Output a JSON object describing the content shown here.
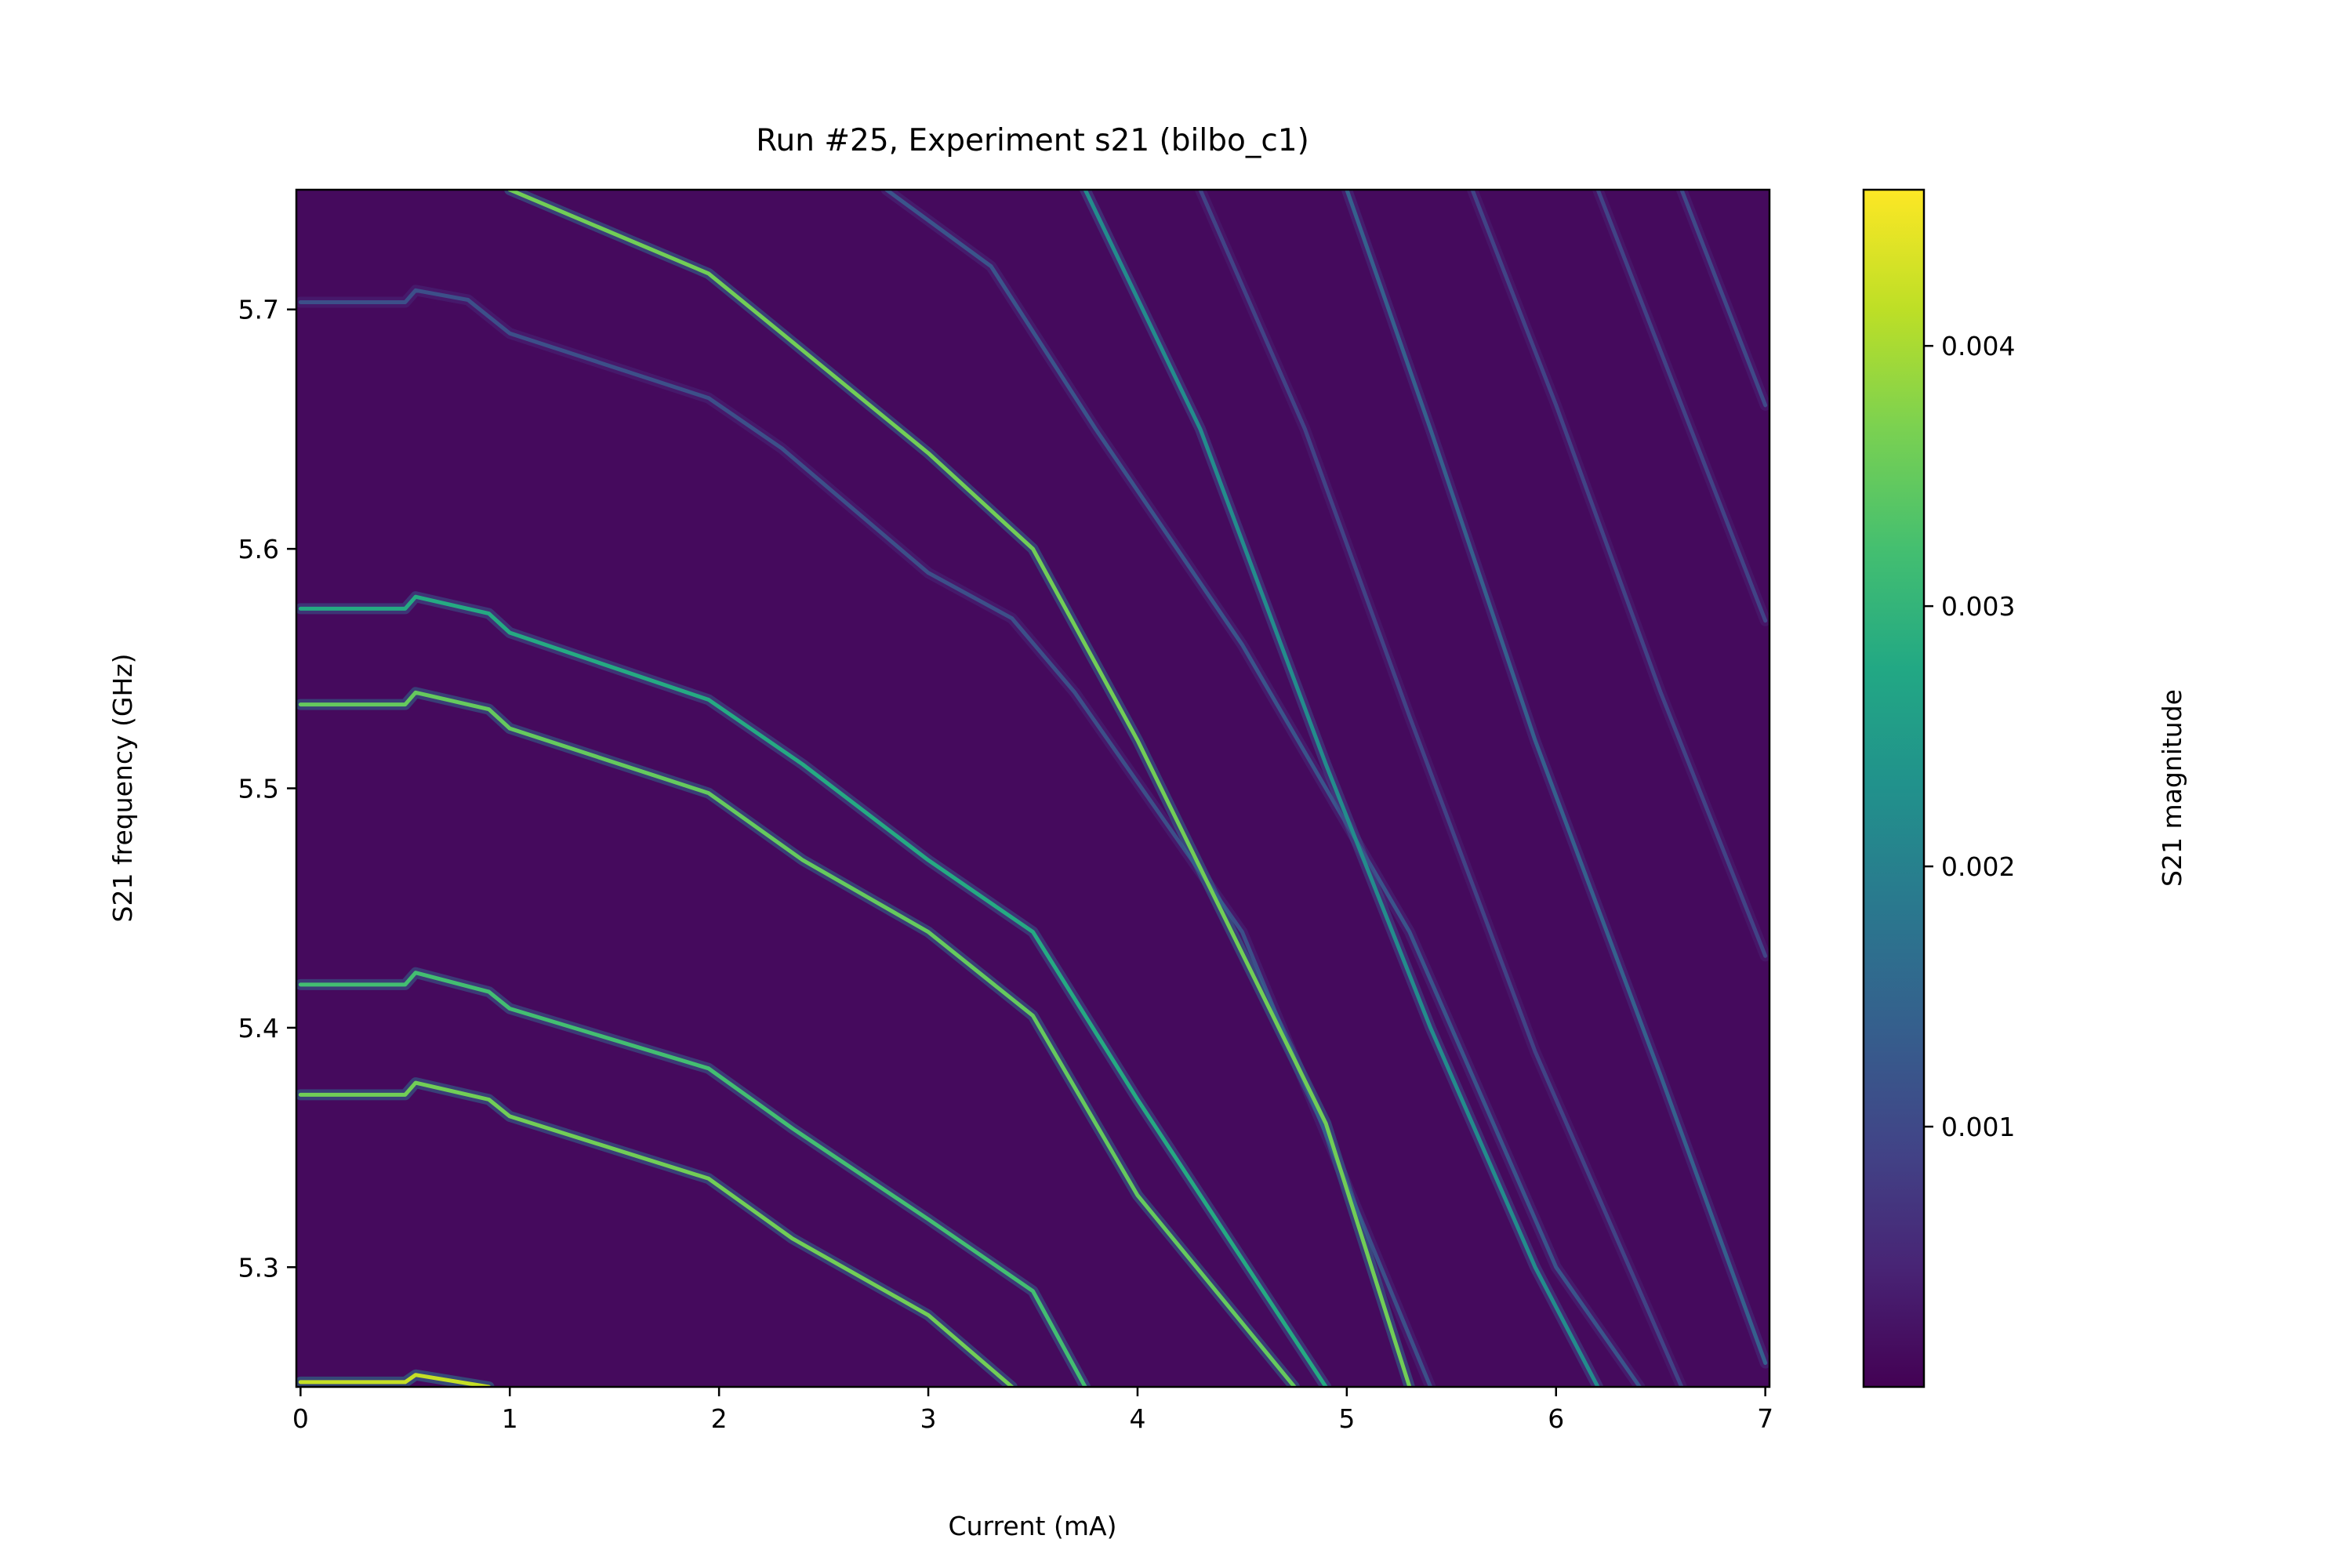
{
  "chart_data": {
    "type": "heatmap",
    "title": "Run #25, Experiment s21 (bilbo_c1)",
    "xlabel": "Current (mA)",
    "ylabel": "S21 frequency (GHz)",
    "colorbar_label": "S21 magnitude",
    "colormap": "viridis",
    "xlim": [
      -0.02,
      7.02
    ],
    "ylim": [
      5.25,
      5.75
    ],
    "clim": [
      0.0,
      0.0046
    ],
    "background_level": 0.00012,
    "x_ticks": [
      0,
      1,
      2,
      3,
      4,
      5,
      6,
      7
    ],
    "x_tick_labels": [
      "0",
      "1",
      "2",
      "3",
      "4",
      "5",
      "6",
      "7"
    ],
    "y_ticks": [
      5.3,
      5.4,
      5.5,
      5.6,
      5.7
    ],
    "y_tick_labels": [
      "5.3",
      "5.4",
      "5.5",
      "5.6",
      "5.7"
    ],
    "colorbar_ticks": [
      0.001,
      0.002,
      0.003,
      0.004
    ],
    "colorbar_tick_labels": [
      "0.001",
      "0.002",
      "0.003",
      "0.004"
    ],
    "series": [
      {
        "points": [
          [
            0.0,
            5.703
          ],
          [
            0.5,
            5.703
          ],
          [
            0.55,
            5.708
          ],
          [
            0.8,
            5.704
          ],
          [
            1.0,
            5.69
          ],
          [
            1.95,
            5.663
          ],
          [
            2.3,
            5.642
          ],
          [
            3.0,
            5.59
          ],
          [
            3.4,
            5.571
          ],
          [
            3.7,
            5.54
          ],
          [
            4.5,
            5.44
          ],
          [
            5.4,
            5.25
          ]
        ],
        "peak": 0.0011
      },
      {
        "points": [
          [
            0.0,
            5.575
          ],
          [
            0.5,
            5.575
          ],
          [
            0.55,
            5.58
          ],
          [
            0.9,
            5.573
          ],
          [
            1.0,
            5.565
          ],
          [
            1.95,
            5.537
          ],
          [
            2.4,
            5.51
          ],
          [
            3.0,
            5.47
          ],
          [
            3.5,
            5.44
          ],
          [
            4.0,
            5.37
          ],
          [
            4.9,
            5.25
          ]
        ],
        "peak": 0.0028
      },
      {
        "points": [
          [
            0.0,
            5.535
          ],
          [
            0.5,
            5.535
          ],
          [
            0.55,
            5.54
          ],
          [
            0.9,
            5.533
          ],
          [
            1.0,
            5.525
          ],
          [
            1.95,
            5.498
          ],
          [
            2.4,
            5.47
          ],
          [
            3.0,
            5.44
          ],
          [
            3.5,
            5.405
          ],
          [
            4.0,
            5.33
          ],
          [
            4.75,
            5.25
          ]
        ],
        "peak": 0.0035
      },
      {
        "points": [
          [
            0.0,
            5.418
          ],
          [
            0.5,
            5.418
          ],
          [
            0.55,
            5.423
          ],
          [
            0.9,
            5.415
          ],
          [
            1.0,
            5.408
          ],
          [
            1.95,
            5.383
          ],
          [
            2.35,
            5.358
          ],
          [
            3.0,
            5.32
          ],
          [
            3.5,
            5.29
          ],
          [
            3.75,
            5.25
          ]
        ],
        "peak": 0.0032
      },
      {
        "points": [
          [
            0.0,
            5.372
          ],
          [
            0.5,
            5.372
          ],
          [
            0.55,
            5.377
          ],
          [
            0.9,
            5.37
          ],
          [
            1.0,
            5.363
          ],
          [
            1.95,
            5.337
          ],
          [
            2.35,
            5.312
          ],
          [
            3.0,
            5.28
          ],
          [
            3.4,
            5.25
          ]
        ],
        "peak": 0.0036
      },
      {
        "points": [
          [
            0.0,
            5.252
          ],
          [
            0.5,
            5.252
          ],
          [
            0.55,
            5.255
          ],
          [
            0.9,
            5.25
          ]
        ],
        "peak": 0.0042
      },
      {
        "points": [
          [
            1.0,
            5.75
          ],
          [
            1.95,
            5.715
          ],
          [
            2.3,
            5.69
          ],
          [
            3.0,
            5.64
          ],
          [
            3.5,
            5.6
          ],
          [
            4.0,
            5.52
          ],
          [
            4.9,
            5.36
          ],
          [
            5.3,
            5.25
          ]
        ],
        "peak": 0.0036
      },
      {
        "points": [
          [
            2.8,
            5.75
          ],
          [
            3.3,
            5.718
          ],
          [
            3.8,
            5.65
          ],
          [
            4.5,
            5.56
          ],
          [
            5.3,
            5.44
          ],
          [
            6.0,
            5.3
          ],
          [
            6.4,
            5.25
          ]
        ],
        "peak": 0.0012
      },
      {
        "points": [
          [
            3.75,
            5.75
          ],
          [
            4.3,
            5.65
          ],
          [
            4.9,
            5.51
          ],
          [
            5.4,
            5.4
          ],
          [
            5.9,
            5.3
          ],
          [
            6.2,
            5.25
          ]
        ],
        "peak": 0.0022
      },
      {
        "points": [
          [
            4.3,
            5.75
          ],
          [
            4.8,
            5.65
          ],
          [
            5.3,
            5.53
          ],
          [
            5.9,
            5.39
          ],
          [
            6.6,
            5.25
          ]
        ],
        "peak": 0.0009
      },
      {
        "points": [
          [
            5.0,
            5.75
          ],
          [
            5.4,
            5.65
          ],
          [
            5.9,
            5.52
          ],
          [
            6.5,
            5.38
          ],
          [
            7.0,
            5.26
          ]
        ],
        "peak": 0.0014
      },
      {
        "points": [
          [
            5.6,
            5.75
          ],
          [
            6.0,
            5.66
          ],
          [
            6.5,
            5.54
          ],
          [
            7.0,
            5.43
          ]
        ],
        "peak": 0.0009
      },
      {
        "points": [
          [
            6.2,
            5.75
          ],
          [
            6.6,
            5.66
          ],
          [
            7.0,
            5.57
          ]
        ],
        "peak": 0.0009
      },
      {
        "points": [
          [
            6.6,
            5.75
          ],
          [
            7.0,
            5.66
          ]
        ],
        "peak": 0.001
      }
    ]
  }
}
